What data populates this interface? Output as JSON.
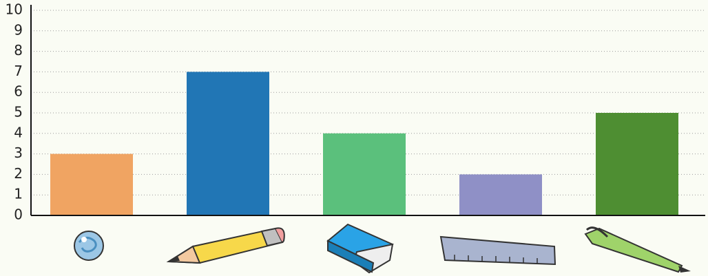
{
  "chart_data": {
    "type": "bar",
    "categories": [
      null,
      null,
      null,
      null,
      null
    ],
    "values": [
      3,
      7,
      4,
      2,
      5
    ],
    "colors": [
      "#f0a462",
      "#2176b5",
      "#5bc07c",
      "#8f90c6",
      "#4e8e32"
    ],
    "ylim": [
      0,
      10
    ],
    "yticks": [
      0,
      1,
      2,
      3,
      4,
      5,
      6,
      7,
      8,
      9,
      10
    ],
    "grid": true
  }
}
